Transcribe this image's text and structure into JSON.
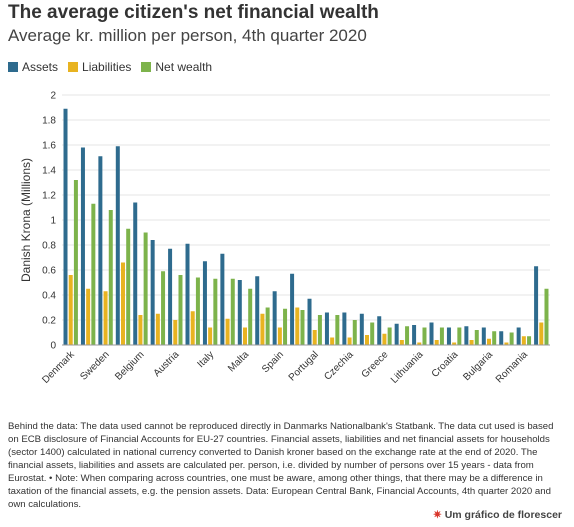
{
  "chart_data": {
    "type": "bar",
    "title": "The average citizen's net financial wealth",
    "subtitle": "Average kr. million per person, 4th quarter 2020",
    "y_label": "Danish Krona (Millions)",
    "categories": [
      "Denmark",
      null,
      "Sweden",
      null,
      "Belgium",
      null,
      "Austria",
      null,
      "Italy",
      null,
      "Malta",
      null,
      "Spain",
      null,
      "Portugal",
      null,
      "Czechia",
      null,
      "Greece",
      null,
      "Lithuania",
      null,
      "Croatia",
      null,
      "Bulgaria",
      null,
      "Romania",
      null
    ],
    "series": [
      {
        "name": "Assets",
        "color": "#2e6b8e",
        "values": [
          1.89,
          1.58,
          1.51,
          1.59,
          1.14,
          0.84,
          0.77,
          0.81,
          0.67,
          0.73,
          0.52,
          0.55,
          0.43,
          0.57,
          0.37,
          0.26,
          0.26,
          0.25,
          0.23,
          0.17,
          0.16,
          0.18,
          0.14,
          0.15,
          0.14,
          0.11,
          0.14,
          0.63
        ]
      },
      {
        "name": "Liabilities",
        "color": "#e8b321",
        "values": [
          0.56,
          0.45,
          0.43,
          0.66,
          0.24,
          0.25,
          0.2,
          0.27,
          0.14,
          0.21,
          0.14,
          0.25,
          0.14,
          0.3,
          0.12,
          0.06,
          0.06,
          0.08,
          0.09,
          0.04,
          0.02,
          0.04,
          0.02,
          0.04,
          0.05,
          0.02,
          0.07,
          0.18
        ]
      },
      {
        "name": "Net wealth",
        "color": "#7db34b",
        "values": [
          1.32,
          1.13,
          1.08,
          0.93,
          0.9,
          0.59,
          0.56,
          0.54,
          0.53,
          0.53,
          0.45,
          0.3,
          0.29,
          0.28,
          0.24,
          0.24,
          0.2,
          0.18,
          0.14,
          0.15,
          0.14,
          0.14,
          0.14,
          0.12,
          0.11,
          0.1,
          0.07,
          0.45
        ]
      }
    ],
    "ylim": [
      0,
      2
    ],
    "yticks": [
      0,
      0.2,
      0.4,
      0.6,
      0.8,
      1,
      1.2,
      1.4,
      1.6,
      1.8,
      2
    ],
    "grid": true,
    "legend": "top",
    "note": "Behind the data: The data used cannot be reproduced directly in Danmarks Nationalbank's Statbank. The data cut used is based on ECB disclosure of Financial Accounts for EU-27 countries. Financial assets, liabilities and net financial assets for households (sector 1400) calculated in national currency converted to Danish kroner based on the exchange rate at the end of 2020. The financial assets, liabilities and assets are calculated per. person, i.e. divided by number of persons over 15 years - data from Eurostat. • Note: When comparing across countries, one must be aware, among other things, that there may be a difference in taxation of the financial assets, e.g. the pension assets. Data: European Central Bank, Financial Accounts, 4th quarter 2020 and own calculations.",
    "credit": "Um gráfico de florescer"
  }
}
